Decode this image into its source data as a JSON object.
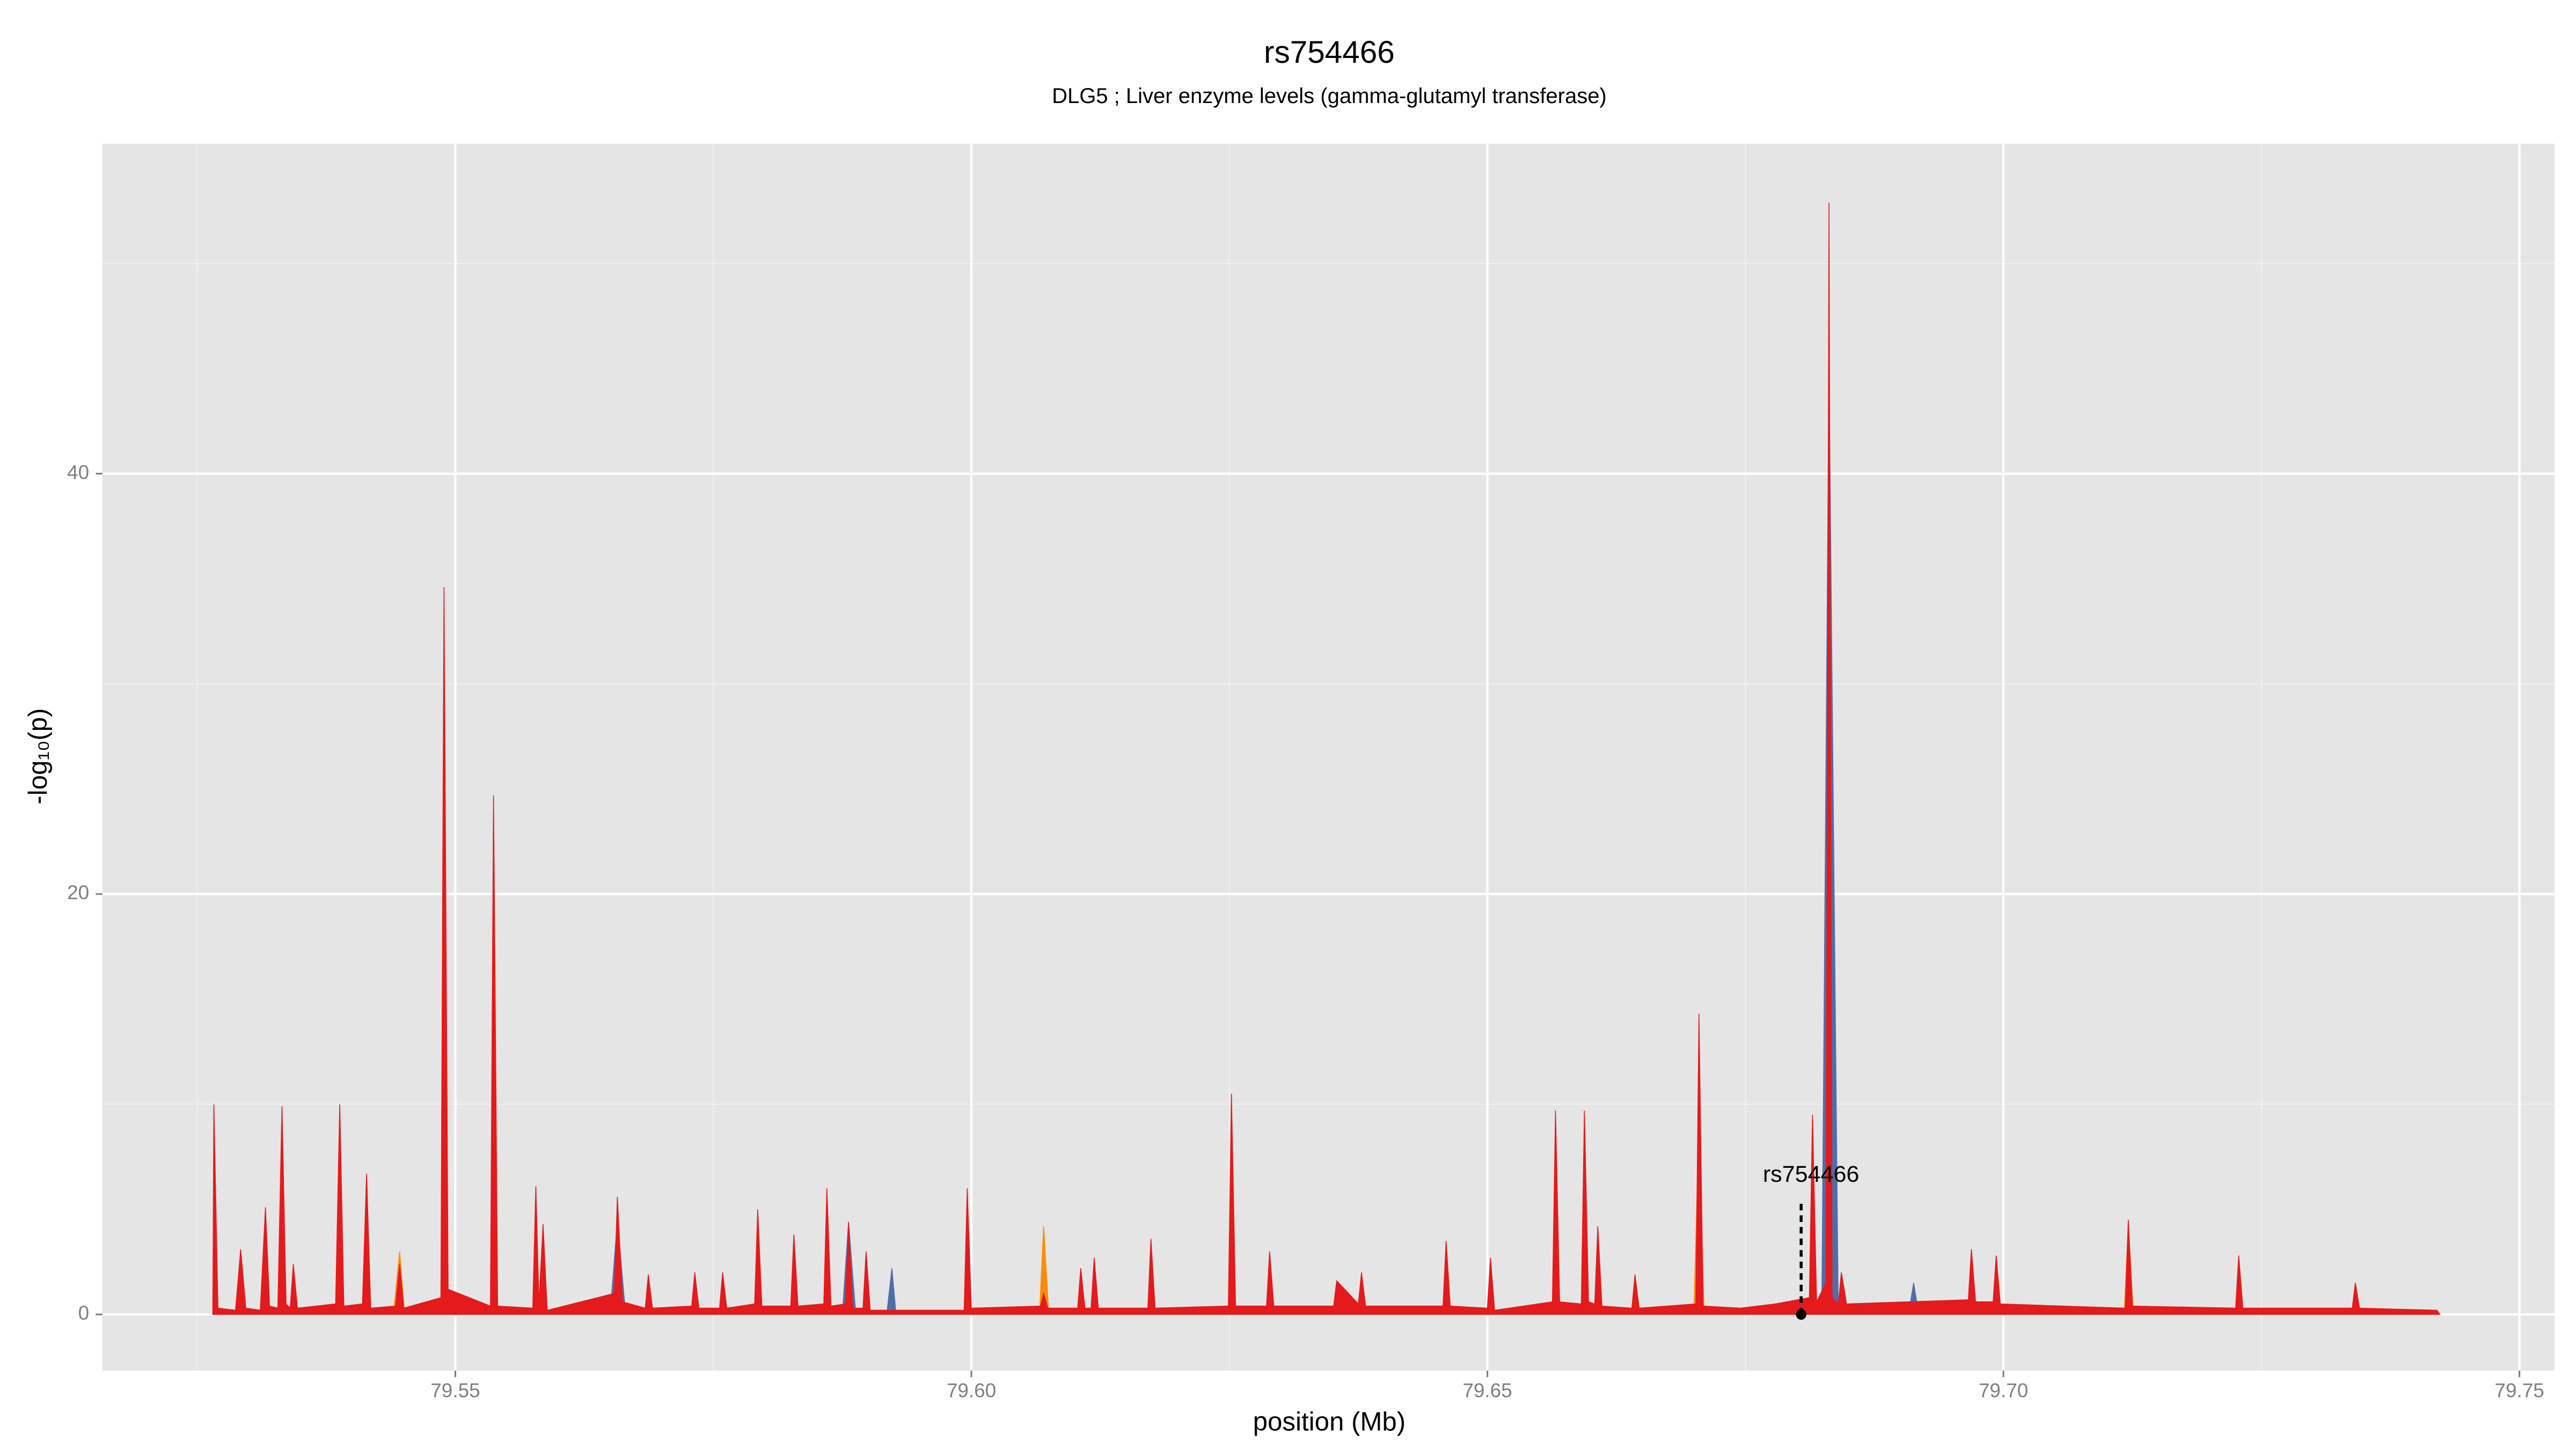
{
  "chart_data": {
    "type": "area",
    "title": "rs754466",
    "subtitle": "DLG5 ; Liver enzyme levels (gamma-glutamyl transferase)",
    "x_label": "position (Mb)",
    "y_label": "-log₁₀(p)",
    "xlim": [
      79.5158,
      79.7534
    ],
    "ylim": [
      -2.67,
      55.7
    ],
    "xticks": [
      79.55,
      {
        "value": 79.6,
        "label": "79.60"
      },
      79.65,
      {
        "value": 79.7,
        "label": "79.70"
      },
      79.75
    ],
    "yticks": [
      0,
      20,
      40
    ],
    "grid": true,
    "background": "#e5e5e5",
    "series": [
      {
        "color": "#4f6ea8",
        "x": [
          79.565,
          79.5657,
          79.5665,
          79.5875,
          79.5881,
          79.5888,
          79.5918,
          79.5923,
          79.5927,
          79.6824,
          79.6831,
          79.684,
          79.6908,
          79.6913,
          79.6918
        ],
        "values": [
          0,
          4.5,
          0,
          0,
          4.4,
          0,
          0,
          2.2,
          0,
          0,
          45.0,
          0,
          0,
          1.5,
          0
        ]
      },
      {
        "color": "#ff8c00",
        "x": [
          79.544,
          79.5446,
          79.5451,
          79.5993,
          79.5996,
          79.6,
          79.6066,
          79.607,
          79.6075,
          79.67,
          79.6705,
          79.671,
          79.7117,
          79.7121,
          79.7126
        ],
        "values": [
          0,
          3.0,
          0,
          0,
          5.5,
          0,
          0,
          4.2,
          0,
          0,
          9.0,
          0,
          0,
          4.3,
          0
        ]
      },
      {
        "color": "#e41a1c",
        "x": [
          79.5265,
          79.5266,
          79.527,
          79.5287,
          79.5292,
          79.5297,
          79.5311,
          79.5316,
          79.532,
          79.5328,
          79.5332,
          79.5336,
          79.534,
          79.5343,
          79.5347,
          79.5384,
          79.5388,
          79.5392,
          79.541,
          79.5414,
          79.5418,
          79.5442,
          79.5446,
          79.545,
          79.5486,
          79.5489,
          79.5493,
          79.5534,
          79.5537,
          79.5541,
          79.5575,
          79.5578,
          79.5581,
          79.5585,
          79.5589,
          79.5654,
          79.5657,
          79.5662,
          79.5684,
          79.5687,
          79.5691,
          79.5729,
          79.5732,
          79.5736,
          79.5756,
          79.5759,
          79.5763,
          79.579,
          79.5793,
          79.5797,
          79.5825,
          79.5828,
          79.5832,
          79.5857,
          79.586,
          79.5864,
          79.5878,
          79.5881,
          79.5885,
          79.5895,
          79.5898,
          79.5902,
          79.5993,
          79.5996,
          79.6,
          79.6067,
          79.607,
          79.6074,
          79.6103,
          79.6106,
          79.611,
          79.6116,
          79.6119,
          79.6123,
          79.6171,
          79.6174,
          79.6178,
          79.6249,
          79.6252,
          79.6256,
          79.6286,
          79.6289,
          79.6293,
          79.6351,
          79.6354,
          79.6375,
          79.6378,
          79.6382,
          79.6457,
          79.646,
          79.6464,
          79.65,
          79.6503,
          79.6507,
          79.6563,
          79.6566,
          79.657,
          79.6591,
          79.6594,
          79.6598,
          79.6604,
          79.6607,
          79.6611,
          79.664,
          79.6643,
          79.6647,
          79.6702,
          79.6705,
          79.6709,
          79.6745,
          79.6779,
          79.6812,
          79.6815,
          79.6819,
          79.6828,
          79.6831,
          79.6834,
          79.684,
          79.6843,
          79.6848,
          79.6966,
          79.6969,
          79.6973,
          79.699,
          79.6993,
          79.6997,
          79.7118,
          79.7121,
          79.7125,
          79.7225,
          79.7228,
          79.7232,
          79.7338,
          79.7341,
          79.7345,
          79.742,
          79.7423
        ],
        "values": [
          0,
          10.0,
          0.3,
          0.2,
          3.1,
          0.3,
          0.2,
          5.1,
          0.4,
          0.3,
          9.9,
          0.5,
          0.3,
          2.4,
          0.3,
          0.5,
          10.0,
          0.4,
          0.5,
          6.7,
          0.3,
          0.4,
          2.4,
          0.3,
          0.8,
          34.6,
          1.2,
          0.4,
          24.7,
          0.4,
          0.3,
          6.1,
          0.5,
          4.3,
          0.2,
          1.0,
          5.6,
          0.6,
          0.3,
          1.9,
          0.3,
          0.4,
          2.0,
          0.3,
          0.3,
          2.0,
          0.3,
          0.5,
          5.0,
          0.4,
          0.4,
          3.8,
          0.4,
          0.5,
          6.0,
          0.4,
          0.5,
          4.4,
          0.3,
          0.3,
          3.0,
          0.2,
          0.2,
          6.0,
          0.3,
          0.4,
          1.0,
          0.3,
          0.3,
          2.2,
          0.3,
          0.3,
          2.7,
          0.3,
          0.3,
          3.6,
          0.3,
          0.4,
          10.5,
          0.4,
          0.4,
          3.0,
          0.4,
          0.4,
          1.6,
          0.5,
          2.0,
          0.4,
          0.4,
          3.5,
          0.4,
          0.3,
          2.7,
          0.2,
          0.6,
          9.7,
          0.6,
          0.5,
          9.7,
          0.6,
          0.5,
          4.2,
          0.4,
          0.3,
          1.9,
          0.3,
          0.5,
          14.3,
          0.4,
          0.3,
          0.5,
          0.8,
          9.5,
          0.6,
          1.5,
          52.9,
          0.8,
          0.5,
          2.0,
          0.5,
          0.7,
          3.1,
          0.6,
          0.6,
          2.8,
          0.5,
          0.3,
          4.5,
          0.4,
          0.3,
          2.8,
          0.3,
          0.3,
          1.5,
          0.3,
          0.2,
          0
        ]
      }
    ],
    "annotation": {
      "label": "rs754466",
      "x": 79.6804,
      "y": 0
    }
  }
}
